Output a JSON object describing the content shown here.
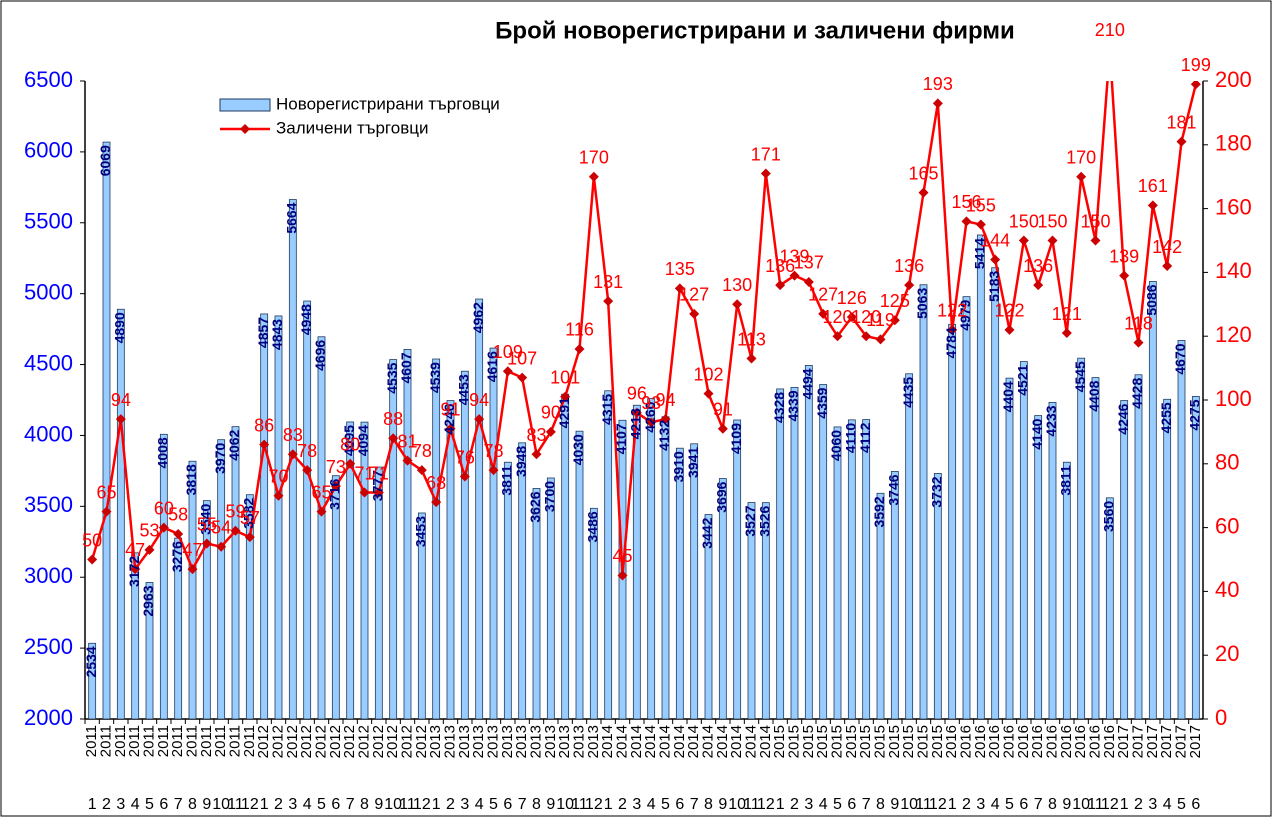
{
  "chart_data": {
    "type": "combo",
    "title": "Брой новорегистрирани и заличени фирми",
    "categories": [
      "1",
      "2",
      "3",
      "4",
      "5",
      "6",
      "7",
      "8",
      "9",
      "10",
      "11",
      "12",
      "1",
      "2",
      "3",
      "4",
      "5",
      "6",
      "7",
      "8",
      "9",
      "10",
      "11",
      "12",
      "1",
      "2",
      "3",
      "4",
      "5",
      "6",
      "7",
      "8",
      "9",
      "10",
      "11",
      "12",
      "1",
      "2",
      "3",
      "4",
      "5",
      "6",
      "7",
      "8",
      "9",
      "10",
      "11",
      "12",
      "1",
      "2",
      "3",
      "4",
      "5",
      "6",
      "7",
      "8",
      "9",
      "10",
      "11",
      "12",
      "1",
      "2",
      "3",
      "4",
      "5",
      "6",
      "7",
      "8",
      "9",
      "10",
      "11",
      "12",
      "1",
      "2",
      "3",
      "4",
      "5",
      "6"
    ],
    "years": [
      "2011",
      "2011",
      "2011",
      "2011",
      "2011",
      "2011",
      "2011",
      "2011",
      "2011",
      "2011",
      "2011",
      "2011",
      "2012",
      "2012",
      "2012",
      "2012",
      "2012",
      "2012",
      "2012",
      "2012",
      "2012",
      "2012",
      "2012",
      "2012",
      "2013",
      "2013",
      "2013",
      "2013",
      "2013",
      "2013",
      "2013",
      "2013",
      "2013",
      "2013",
      "2013",
      "2013",
      "2014",
      "2014",
      "2014",
      "2014",
      "2014",
      "2014",
      "2014",
      "2014",
      "2014",
      "2014",
      "2014",
      "2014",
      "2015",
      "2015",
      "2015",
      "2015",
      "2015",
      "2015",
      "2015",
      "2015",
      "2015",
      "2015",
      "2015",
      "2015",
      "2016",
      "2016",
      "2016",
      "2016",
      "2016",
      "2016",
      "2016",
      "2016",
      "2016",
      "2016",
      "2016",
      "2016",
      "2017",
      "2017",
      "2017",
      "2017",
      "2017",
      "2017"
    ],
    "series": [
      {
        "name": "Новорегистрирани търговци",
        "type": "bar",
        "color": "#99ccff",
        "edge": "#1f3a5f",
        "label_color": "#000080",
        "values": [
          2534,
          6069,
          4890,
          3172,
          2963,
          4008,
          3276,
          3818,
          3540,
          3970,
          4062,
          3582,
          4857,
          4843,
          5664,
          4948,
          4696,
          3716,
          4095,
          4094,
          3777,
          4535,
          4607,
          3453,
          4539,
          4246,
          4453,
          4962,
          4616,
          3811,
          3948,
          3626,
          3700,
          4291,
          4030,
          3486,
          4315,
          4107,
          4213,
          4260,
          4132,
          3910,
          3941,
          3442,
          3696,
          4109,
          3527,
          3526,
          4328,
          4339,
          4494,
          4359,
          4060,
          4110,
          4112,
          3592,
          3746,
          4435,
          5063,
          3732,
          4784,
          4979,
          5414,
          5183,
          4404,
          4521,
          4140,
          4233,
          3811,
          4545,
          4408,
          3560,
          4246,
          4428,
          5086,
          4255,
          4670,
          4275
        ]
      },
      {
        "name": "Заличени търговци",
        "type": "line",
        "axis": "y2",
        "color": "#ff0000",
        "marker_color": "#cc0000",
        "values": [
          50,
          65,
          94,
          47,
          53,
          60,
          58,
          47,
          55,
          54,
          59,
          57,
          86,
          70,
          83,
          78,
          65,
          73,
          80,
          71,
          71,
          88,
          81,
          78,
          68,
          91,
          76,
          94,
          78,
          109,
          107,
          83,
          90,
          101,
          116,
          170,
          131,
          45,
          96,
          93,
          94,
          135,
          127,
          102,
          91,
          130,
          113,
          171,
          136,
          139,
          137,
          127,
          120,
          126,
          120,
          119,
          125,
          136,
          165,
          193,
          122,
          156,
          155,
          144,
          122,
          150,
          136,
          150,
          121,
          170,
          150,
          210,
          139,
          118,
          161,
          142,
          181,
          199
        ]
      }
    ],
    "ylim": [
      2000,
      6500
    ],
    "yticks": [
      2000,
      2500,
      3000,
      3500,
      4000,
      4500,
      5000,
      5500,
      6000,
      6500
    ],
    "y_color": "#0000ff",
    "y2lim": [
      0,
      200
    ],
    "y2ticks": [
      0,
      20,
      40,
      60,
      80,
      100,
      120,
      140,
      160,
      180,
      200
    ],
    "y2_color": "#ff0000"
  }
}
